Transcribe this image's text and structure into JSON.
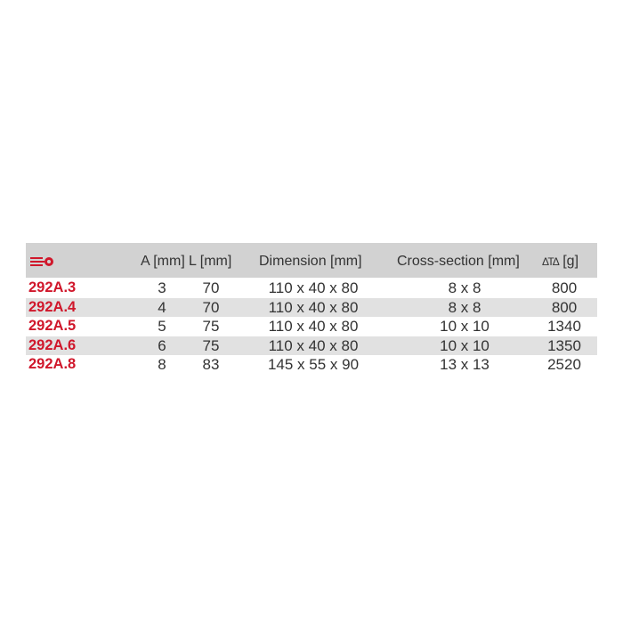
{
  "header": {
    "logo": "wrench-logo-icon",
    "a": "A [mm]",
    "l": "L [mm]",
    "dimension": "Dimension [mm]",
    "cross": "Cross-section [mm]",
    "weight_icon": "weight-scale-icon",
    "weight": "[g]",
    "weight_symbol": "ΔΤΔ"
  },
  "accent": "#d0172b",
  "rows": [
    {
      "code": "292A.3",
      "a": "3",
      "l": "70",
      "dimension": "110 x 40 x 80",
      "cross": "8 x 8",
      "weight": "800"
    },
    {
      "code": "292A.4",
      "a": "4",
      "l": "70",
      "dimension": "110 x 40 x 80",
      "cross": "8 x 8",
      "weight": "800"
    },
    {
      "code": "292A.5",
      "a": "5",
      "l": "75",
      "dimension": "110 x 40 x 80",
      "cross": "10 x 10",
      "weight": "1340"
    },
    {
      "code": "292A.6",
      "a": "6",
      "l": "75",
      "dimension": "110 x 40 x 80",
      "cross": "10 x 10",
      "weight": "1350"
    },
    {
      "code": "292A.8",
      "a": "8",
      "l": "83",
      "dimension": "145 x 55 x 90",
      "cross": "13 x 13",
      "weight": "2520"
    }
  ]
}
